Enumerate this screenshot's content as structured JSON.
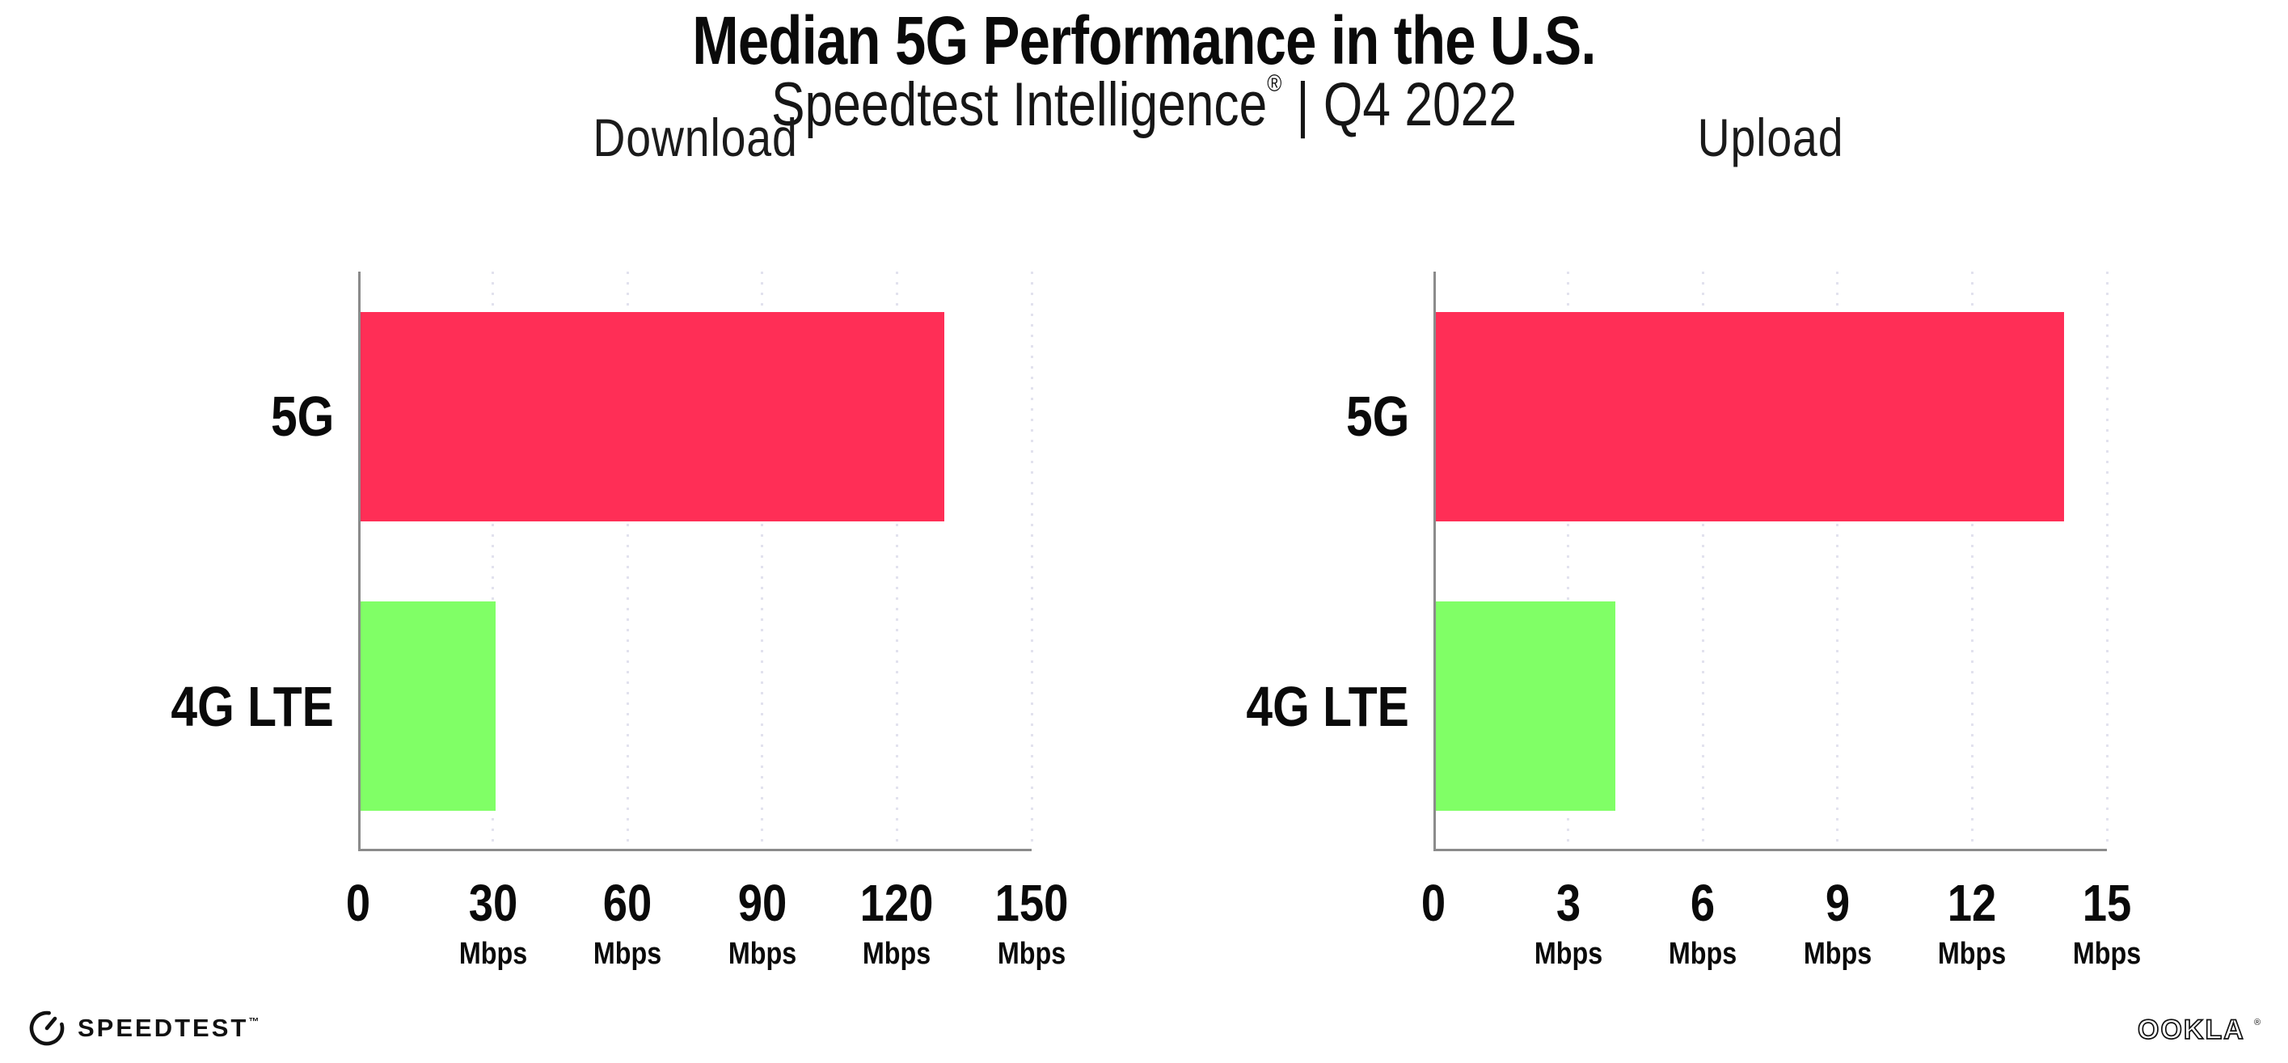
{
  "header": {
    "title": "Median 5G Performance in the U.S.",
    "subtitle_brand": "Speedtest Intelligence",
    "subtitle_reg": "®",
    "subtitle_rest": "| Q4 2022"
  },
  "footer": {
    "speedtest_label": "SPEEDTEST",
    "speedtest_tm": "™",
    "speedtest_icon": "speedometer-gauge-icon",
    "ookla_label": "OOKLA",
    "ookla_reg": "®"
  },
  "colors": {
    "bar_5g": "#FF2E56",
    "bar_4g_lte": "#80FF66",
    "axis_line": "#8B8B8B",
    "gridline": "#E2E2EE",
    "text": "#0A0A0A",
    "background": "#FFFFFF"
  },
  "chart_data": [
    {
      "type": "bar",
      "orientation": "horizontal",
      "title": "Download",
      "categories": [
        "5G",
        "4G LTE"
      ],
      "values": [
        130,
        30
      ],
      "unit": "Mbps",
      "xlim": [
        0,
        150
      ],
      "x_ticks": [
        0,
        30,
        60,
        90,
        120,
        150
      ],
      "tick_unit_label": "Mbps",
      "zero_tick_shows_unit": false,
      "bar_colors": [
        "#FF2E56",
        "#80FF66"
      ],
      "grid": "dotted vertical gridline at each nonzero tick",
      "legend": "none"
    },
    {
      "type": "bar",
      "orientation": "horizontal",
      "title": "Upload",
      "categories": [
        "5G",
        "4G LTE"
      ],
      "values": [
        14,
        4
      ],
      "unit": "Mbps",
      "xlim": [
        0,
        15
      ],
      "x_ticks": [
        0,
        3,
        6,
        9,
        12,
        15
      ],
      "tick_unit_label": "Mbps",
      "zero_tick_shows_unit": false,
      "bar_colors": [
        "#FF2E56",
        "#80FF66"
      ],
      "grid": "dotted vertical gridline at each nonzero tick",
      "legend": "none"
    }
  ]
}
